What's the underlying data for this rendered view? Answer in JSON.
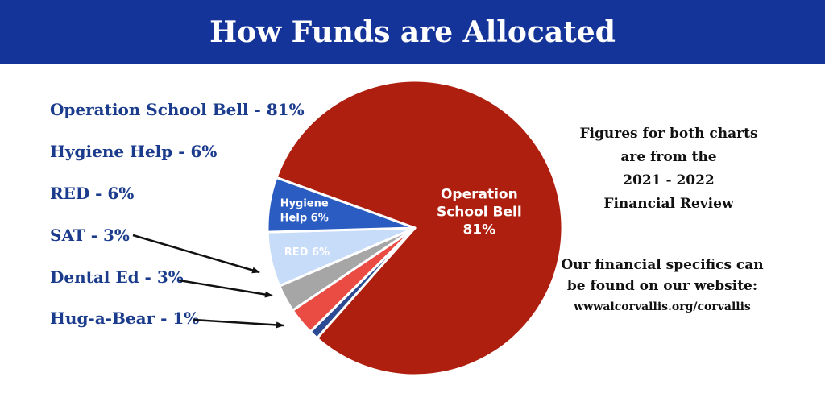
{
  "header": {
    "title": "How Funds are Allocated"
  },
  "legend": [
    "Operation School Bell - 81%",
    "Hygiene Help - 6%",
    "RED - 6%",
    "SAT  - 3%",
    "Dental Ed - 3%",
    "Hug-a-Bear - 1%"
  ],
  "notes": {
    "figures_lines": [
      "Figures for both charts",
      "are from the",
      "2021 - 2022",
      "Financial Review"
    ],
    "website_lines": [
      "Our financial specifics can",
      "be found on our website:"
    ],
    "website_url": "wwwalcorvallis.org/corvallis"
  },
  "chart_data": {
    "type": "pie",
    "title": "How Funds are Allocated",
    "slices": [
      {
        "name": "Operation School Bell",
        "value": 81,
        "color": "#af1f0f",
        "label_lines": [
          "Operation",
          "School Bell",
          "81%"
        ]
      },
      {
        "name": "Hug-a-Bear",
        "value": 1,
        "color": "#2c4a94",
        "label_lines": []
      },
      {
        "name": "Dental Ed",
        "value": 3,
        "color": "#ea4b43",
        "label_lines": []
      },
      {
        "name": "SAT",
        "value": 3,
        "color": "#a6a6a6",
        "label_lines": []
      },
      {
        "name": "RED",
        "value": 6,
        "color": "#c7dcf8",
        "label_lines": [
          "RED  6%"
        ]
      },
      {
        "name": "Hygiene Help",
        "value": 6,
        "color": "#2a5cc2",
        "label_lines": [
          "Hygiene",
          "Help  6%"
        ]
      }
    ],
    "legend_position": "left"
  }
}
